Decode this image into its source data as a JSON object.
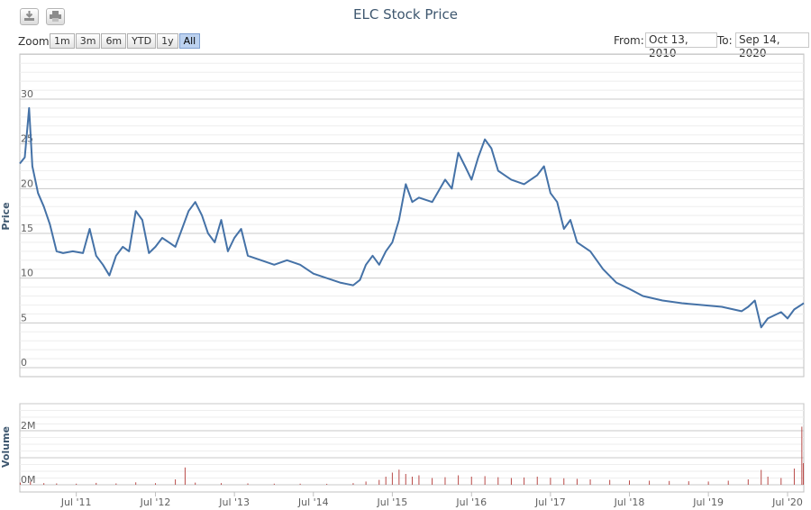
{
  "title": "ELC Stock Price",
  "icons": {
    "download": "download-icon",
    "print": "print-icon"
  },
  "zoom": {
    "label": "Zoom",
    "buttons": [
      "1m",
      "3m",
      "6m",
      "YTD",
      "1y",
      "All"
    ],
    "selected": "All"
  },
  "range": {
    "from_label": "From:",
    "from_value": "Oct 13, 2010",
    "to_label": "To:",
    "to_value": "Sep 14, 2020"
  },
  "colors": {
    "price_line": "#4572a7",
    "volume_bar": "#b94a48",
    "grid": "#d8d8d8",
    "title": "#3e576f"
  },
  "chart_data": {
    "type": "line",
    "title": "ELC Stock Price",
    "price": {
      "ylabel": "Price",
      "ylim": [
        0,
        30
      ],
      "yticks": [
        0,
        5,
        10,
        15,
        20,
        25,
        30
      ],
      "points": [
        [
          "2010-10-13",
          22.8
        ],
        [
          "2010-11-05",
          23.5
        ],
        [
          "2010-11-25",
          29.0
        ],
        [
          "2010-12-10",
          22.5
        ],
        [
          "2011-01-05",
          19.5
        ],
        [
          "2011-02-01",
          18.0
        ],
        [
          "2011-03-01",
          16.0
        ],
        [
          "2011-04-01",
          13.0
        ],
        [
          "2011-05-01",
          12.8
        ],
        [
          "2011-06-15",
          13.0
        ],
        [
          "2011-08-01",
          12.8
        ],
        [
          "2011-09-01",
          15.5
        ],
        [
          "2011-10-01",
          12.5
        ],
        [
          "2011-11-01",
          11.5
        ],
        [
          "2011-12-01",
          10.3
        ],
        [
          "2012-01-01",
          12.5
        ],
        [
          "2012-02-01",
          13.5
        ],
        [
          "2012-03-01",
          13.0
        ],
        [
          "2012-04-01",
          17.5
        ],
        [
          "2012-05-01",
          16.5
        ],
        [
          "2012-06-01",
          12.8
        ],
        [
          "2012-07-01",
          13.5
        ],
        [
          "2012-08-01",
          14.5
        ],
        [
          "2012-09-01",
          14.0
        ],
        [
          "2012-10-01",
          13.5
        ],
        [
          "2012-11-01",
          15.5
        ],
        [
          "2012-12-01",
          17.5
        ],
        [
          "2013-01-01",
          18.5
        ],
        [
          "2013-02-01",
          17.0
        ],
        [
          "2013-03-01",
          15.0
        ],
        [
          "2013-04-01",
          14.0
        ],
        [
          "2013-05-01",
          16.5
        ],
        [
          "2013-06-01",
          13.0
        ],
        [
          "2013-07-01",
          14.5
        ],
        [
          "2013-08-01",
          15.5
        ],
        [
          "2013-09-01",
          12.5
        ],
        [
          "2013-11-01",
          12.0
        ],
        [
          "2014-01-01",
          11.5
        ],
        [
          "2014-03-01",
          12.0
        ],
        [
          "2014-05-01",
          11.5
        ],
        [
          "2014-07-01",
          10.5
        ],
        [
          "2014-09-01",
          10.0
        ],
        [
          "2014-11-01",
          9.5
        ],
        [
          "2015-01-01",
          9.2
        ],
        [
          "2015-02-01",
          9.8
        ],
        [
          "2015-03-01",
          11.5
        ],
        [
          "2015-04-01",
          12.5
        ],
        [
          "2015-05-01",
          11.5
        ],
        [
          "2015-06-01",
          13.0
        ],
        [
          "2015-07-01",
          14.0
        ],
        [
          "2015-08-01",
          16.5
        ],
        [
          "2015-09-01",
          20.5
        ],
        [
          "2015-10-01",
          18.5
        ],
        [
          "2015-11-01",
          19.0
        ],
        [
          "2016-01-01",
          18.5
        ],
        [
          "2016-03-01",
          21.0
        ],
        [
          "2016-04-01",
          20.0
        ],
        [
          "2016-05-01",
          24.0
        ],
        [
          "2016-06-01",
          22.5
        ],
        [
          "2016-07-01",
          21.0
        ],
        [
          "2016-08-01",
          23.5
        ],
        [
          "2016-09-01",
          25.5
        ],
        [
          "2016-10-01",
          24.5
        ],
        [
          "2016-11-01",
          22.0
        ],
        [
          "2016-12-01",
          21.5
        ],
        [
          "2017-01-01",
          21.0
        ],
        [
          "2017-03-01",
          20.5
        ],
        [
          "2017-05-01",
          21.5
        ],
        [
          "2017-06-01",
          22.5
        ],
        [
          "2017-07-01",
          19.5
        ],
        [
          "2017-08-01",
          18.5
        ],
        [
          "2017-09-01",
          15.5
        ],
        [
          "2017-10-01",
          16.5
        ],
        [
          "2017-11-01",
          14.0
        ],
        [
          "2018-01-01",
          13.0
        ],
        [
          "2018-03-01",
          11.0
        ],
        [
          "2018-05-01",
          9.5
        ],
        [
          "2018-07-01",
          8.8
        ],
        [
          "2018-09-01",
          8.0
        ],
        [
          "2018-12-01",
          7.5
        ],
        [
          "2019-03-01",
          7.2
        ],
        [
          "2019-06-01",
          7.0
        ],
        [
          "2019-09-01",
          6.8
        ],
        [
          "2019-12-01",
          6.3
        ],
        [
          "2020-01-01",
          6.8
        ],
        [
          "2020-02-01",
          7.5
        ],
        [
          "2020-03-01",
          4.5
        ],
        [
          "2020-04-01",
          5.5
        ],
        [
          "2020-06-01",
          6.2
        ],
        [
          "2020-07-01",
          5.5
        ],
        [
          "2020-08-01",
          6.5
        ],
        [
          "2020-09-14",
          7.2
        ]
      ]
    },
    "volume": {
      "ylabel": "Volume",
      "yticks": [
        0,
        2000000
      ],
      "tick_labels": [
        "0M",
        "2M"
      ],
      "ylim": [
        0,
        3000000
      ],
      "points": [
        [
          "2010-10-15",
          80000
        ],
        [
          "2010-12-01",
          120000
        ],
        [
          "2011-02-01",
          60000
        ],
        [
          "2011-04-01",
          50000
        ],
        [
          "2011-07-01",
          40000
        ],
        [
          "2011-10-01",
          70000
        ],
        [
          "2012-01-01",
          50000
        ],
        [
          "2012-04-01",
          90000
        ],
        [
          "2012-07-01",
          60000
        ],
        [
          "2012-10-01",
          200000
        ],
        [
          "2012-11-15",
          640000
        ],
        [
          "2013-01-01",
          80000
        ],
        [
          "2013-05-01",
          60000
        ],
        [
          "2013-09-01",
          50000
        ],
        [
          "2014-01-01",
          40000
        ],
        [
          "2014-05-01",
          40000
        ],
        [
          "2014-09-01",
          35000
        ],
        [
          "2015-01-01",
          60000
        ],
        [
          "2015-03-01",
          120000
        ],
        [
          "2015-05-01",
          180000
        ],
        [
          "2015-06-01",
          300000
        ],
        [
          "2015-07-01",
          450000
        ],
        [
          "2015-08-01",
          560000
        ],
        [
          "2015-09-01",
          400000
        ],
        [
          "2015-10-01",
          300000
        ],
        [
          "2015-11-01",
          350000
        ],
        [
          "2016-01-01",
          250000
        ],
        [
          "2016-03-01",
          280000
        ],
        [
          "2016-05-01",
          350000
        ],
        [
          "2016-07-01",
          300000
        ],
        [
          "2016-09-01",
          320000
        ],
        [
          "2016-11-01",
          280000
        ],
        [
          "2017-01-01",
          250000
        ],
        [
          "2017-03-01",
          270000
        ],
        [
          "2017-05-01",
          300000
        ],
        [
          "2017-07-01",
          260000
        ],
        [
          "2017-09-01",
          240000
        ],
        [
          "2017-11-01",
          220000
        ],
        [
          "2018-01-01",
          200000
        ],
        [
          "2018-04-01",
          180000
        ],
        [
          "2018-07-01",
          160000
        ],
        [
          "2018-10-01",
          150000
        ],
        [
          "2019-01-01",
          140000
        ],
        [
          "2019-04-01",
          130000
        ],
        [
          "2019-07-01",
          120000
        ],
        [
          "2019-10-01",
          150000
        ],
        [
          "2020-01-01",
          200000
        ],
        [
          "2020-03-01",
          550000
        ],
        [
          "2020-04-01",
          300000
        ],
        [
          "2020-06-01",
          250000
        ],
        [
          "2020-08-01",
          600000
        ],
        [
          "2020-09-05",
          2150000
        ],
        [
          "2020-09-12",
          800000
        ]
      ]
    },
    "xticks": [
      "Jul '11",
      "Jul '12",
      "Jul '13",
      "Jul '14",
      "Jul '15",
      "Jul '16",
      "Jul '17",
      "Jul '18",
      "Jul '19",
      "Jul '20"
    ],
    "xtick_dates": [
      "2011-07-01",
      "2012-07-01",
      "2013-07-01",
      "2014-07-01",
      "2015-07-01",
      "2016-07-01",
      "2017-07-01",
      "2018-07-01",
      "2019-07-01",
      "2020-07-01"
    ],
    "xlim": [
      "2010-10-13",
      "2020-09-14"
    ],
    "grid": true,
    "legend": "none"
  }
}
